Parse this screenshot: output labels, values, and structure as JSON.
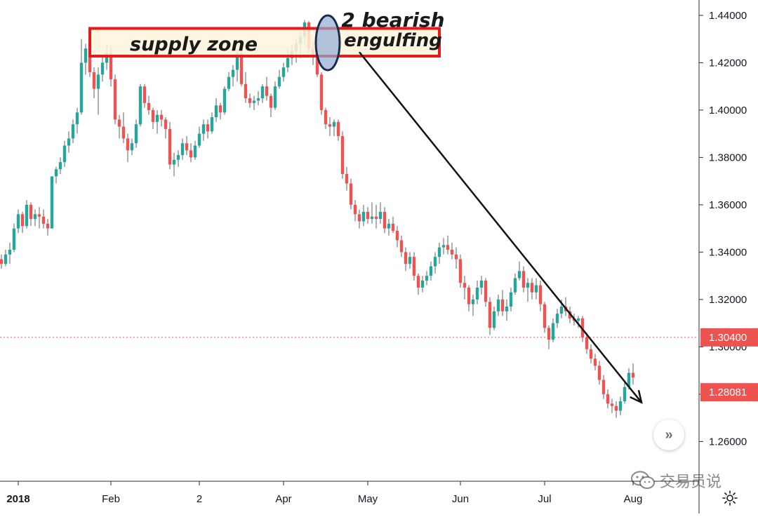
{
  "chart_data": {
    "type": "candlestick",
    "instrument_note": "",
    "y_axis": {
      "ticks": [
        1.26,
        1.28,
        1.3,
        1.32,
        1.34,
        1.36,
        1.38,
        1.4,
        1.42,
        1.44
      ],
      "tick_labels": [
        "1.26000",
        "1.28000",
        "1.30000",
        "1.32000",
        "1.34000",
        "1.36000",
        "1.38000",
        "1.40000",
        "1.42000",
        "1.44000"
      ],
      "range": [
        1.245,
        1.4465
      ],
      "position": "right"
    },
    "x_axis": {
      "tick_labels": [
        "2018",
        "Feb",
        "2",
        "Apr",
        "May",
        "Jun",
        "Jul",
        "Aug"
      ],
      "bar_index_of_ticks": [
        4,
        26,
        47,
        67,
        87,
        109,
        129,
        150
      ],
      "range_bars": [
        0,
        164
      ]
    },
    "grid": false,
    "price_levels": [
      {
        "label": "1.30400",
        "value": 1.304,
        "color": "#ef5350",
        "line": "dotted"
      },
      {
        "label": "1.28081",
        "value": 1.28081,
        "color": "#ef5350",
        "line": "none"
      }
    ],
    "annotations": {
      "supply_zone": {
        "text": "supply zone",
        "price_top": 1.4345,
        "price_bottom": 1.4228,
        "from_bar": 21,
        "to_bar": 104
      },
      "engulfing": {
        "text_line1": "2 bearish",
        "text_line2": "engulfing",
        "ellipse_bars": [
          76,
          79
        ]
      },
      "arrow": {
        "from_bar": 85,
        "from_price": 1.4245,
        "to_bar": 152,
        "to_price": 1.2765
      }
    },
    "colors": {
      "up": "#26a69a",
      "down": "#ef5350",
      "wick": "#5d6068",
      "zone_fill": "#fff5dc",
      "zone_border": "#e51b1b",
      "ellipse_fill": "#90acd4",
      "ellipse_border": "#1c2a4a"
    },
    "candles": [
      [
        1.337,
        1.339,
        1.333,
        1.335
      ],
      [
        1.335,
        1.341,
        1.334,
        1.339
      ],
      [
        1.339,
        1.344,
        1.335,
        1.341
      ],
      [
        1.341,
        1.352,
        1.34,
        1.35
      ],
      [
        1.35,
        1.358,
        1.348,
        1.356
      ],
      [
        1.356,
        1.357,
        1.348,
        1.351
      ],
      [
        1.351,
        1.362,
        1.35,
        1.36
      ],
      [
        1.36,
        1.361,
        1.351,
        1.354
      ],
      [
        1.354,
        1.358,
        1.351,
        1.356
      ],
      [
        1.356,
        1.359,
        1.35,
        1.355
      ],
      [
        1.355,
        1.358,
        1.35,
        1.352
      ],
      [
        1.352,
        1.354,
        1.347,
        1.35
      ],
      [
        1.35,
        1.372,
        1.35,
        1.372
      ],
      [
        1.372,
        1.376,
        1.369,
        1.375
      ],
      [
        1.375,
        1.38,
        1.373,
        1.378
      ],
      [
        1.378,
        1.387,
        1.376,
        1.385
      ],
      [
        1.385,
        1.391,
        1.382,
        1.388
      ],
      [
        1.388,
        1.396,
        1.386,
        1.394
      ],
      [
        1.394,
        1.401,
        1.39,
        1.399
      ],
      [
        1.399,
        1.43,
        1.398,
        1.42
      ],
      [
        1.42,
        1.428,
        1.415,
        1.426
      ],
      [
        1.426,
        1.429,
        1.414,
        1.416
      ],
      [
        1.416,
        1.418,
        1.405,
        1.409
      ],
      [
        1.409,
        1.418,
        1.398,
        1.415
      ],
      [
        1.415,
        1.423,
        1.412,
        1.42
      ],
      [
        1.42,
        1.428,
        1.417,
        1.424
      ],
      [
        1.424,
        1.427,
        1.41,
        1.413
      ],
      [
        1.413,
        1.415,
        1.394,
        1.396
      ],
      [
        1.396,
        1.398,
        1.388,
        1.393
      ],
      [
        1.393,
        1.399,
        1.386,
        1.388
      ],
      [
        1.388,
        1.39,
        1.378,
        1.383
      ],
      [
        1.383,
        1.388,
        1.381,
        1.386
      ],
      [
        1.386,
        1.396,
        1.384,
        1.394
      ],
      [
        1.394,
        1.411,
        1.393,
        1.41
      ],
      [
        1.41,
        1.411,
        1.401,
        1.403
      ],
      [
        1.403,
        1.406,
        1.398,
        1.4
      ],
      [
        1.4,
        1.401,
        1.392,
        1.395
      ],
      [
        1.395,
        1.4,
        1.39,
        1.398
      ],
      [
        1.398,
        1.4,
        1.393,
        1.396
      ],
      [
        1.396,
        1.397,
        1.388,
        1.392
      ],
      [
        1.392,
        1.395,
        1.375,
        1.377
      ],
      [
        1.377,
        1.382,
        1.372,
        1.379
      ],
      [
        1.379,
        1.383,
        1.376,
        1.381
      ],
      [
        1.381,
        1.388,
        1.379,
        1.386
      ],
      [
        1.386,
        1.389,
        1.381,
        1.383
      ],
      [
        1.383,
        1.386,
        1.378,
        1.38
      ],
      [
        1.38,
        1.387,
        1.379,
        1.385
      ],
      [
        1.385,
        1.393,
        1.384,
        1.39
      ],
      [
        1.39,
        1.396,
        1.387,
        1.394
      ],
      [
        1.394,
        1.396,
        1.388,
        1.391
      ],
      [
        1.391,
        1.399,
        1.39,
        1.397
      ],
      [
        1.397,
        1.405,
        1.395,
        1.402
      ],
      [
        1.402,
        1.403,
        1.396,
        1.399
      ],
      [
        1.399,
        1.41,
        1.398,
        1.409
      ],
      [
        1.409,
        1.416,
        1.408,
        1.414
      ],
      [
        1.414,
        1.419,
        1.41,
        1.417
      ],
      [
        1.417,
        1.426,
        1.412,
        1.424
      ],
      [
        1.424,
        1.427,
        1.41,
        1.411
      ],
      [
        1.411,
        1.416,
        1.403,
        1.405
      ],
      [
        1.405,
        1.407,
        1.401,
        1.403
      ],
      [
        1.403,
        1.406,
        1.4,
        1.404
      ],
      [
        1.404,
        1.408,
        1.402,
        1.405
      ],
      [
        1.405,
        1.411,
        1.403,
        1.41
      ],
      [
        1.41,
        1.414,
        1.404,
        1.406
      ],
      [
        1.406,
        1.407,
        1.397,
        1.401
      ],
      [
        1.401,
        1.412,
        1.4,
        1.41
      ],
      [
        1.41,
        1.417,
        1.409,
        1.414
      ],
      [
        1.414,
        1.42,
        1.412,
        1.418
      ],
      [
        1.418,
        1.426,
        1.416,
        1.422
      ],
      [
        1.422,
        1.428,
        1.419,
        1.425
      ],
      [
        1.425,
        1.43,
        1.42,
        1.428
      ],
      [
        1.428,
        1.433,
        1.422,
        1.431
      ],
      [
        1.431,
        1.438,
        1.428,
        1.437
      ],
      [
        1.437,
        1.4376,
        1.424,
        1.426
      ],
      [
        1.426,
        1.429,
        1.419,
        1.423
      ],
      [
        1.423,
        1.425,
        1.414,
        1.415
      ],
      [
        1.415,
        1.416,
        1.398,
        1.4
      ],
      [
        1.4,
        1.401,
        1.392,
        1.394
      ],
      [
        1.394,
        1.397,
        1.389,
        1.393
      ],
      [
        1.393,
        1.396,
        1.389,
        1.395
      ],
      [
        1.395,
        1.396,
        1.387,
        1.389
      ],
      [
        1.389,
        1.391,
        1.371,
        1.373
      ],
      [
        1.373,
        1.376,
        1.366,
        1.369
      ],
      [
        1.369,
        1.371,
        1.358,
        1.36
      ],
      [
        1.36,
        1.362,
        1.353,
        1.356
      ],
      [
        1.356,
        1.358,
        1.35,
        1.353
      ],
      [
        1.353,
        1.36,
        1.351,
        1.357
      ],
      [
        1.357,
        1.359,
        1.352,
        1.354
      ],
      [
        1.354,
        1.361,
        1.352,
        1.355
      ],
      [
        1.355,
        1.36,
        1.35,
        1.354
      ],
      [
        1.354,
        1.361,
        1.352,
        1.357
      ],
      [
        1.357,
        1.359,
        1.348,
        1.35
      ],
      [
        1.35,
        1.354,
        1.347,
        1.352
      ],
      [
        1.352,
        1.355,
        1.348,
        1.349
      ],
      [
        1.349,
        1.351,
        1.342,
        1.345
      ],
      [
        1.345,
        1.347,
        1.338,
        1.34
      ],
      [
        1.34,
        1.342,
        1.332,
        1.335
      ],
      [
        1.335,
        1.34,
        1.333,
        1.338
      ],
      [
        1.338,
        1.34,
        1.328,
        1.33
      ],
      [
        1.33,
        1.331,
        1.322,
        1.325
      ],
      [
        1.325,
        1.33,
        1.323,
        1.328
      ],
      [
        1.328,
        1.332,
        1.326,
        1.33
      ],
      [
        1.33,
        1.336,
        1.328,
        1.334
      ],
      [
        1.334,
        1.34,
        1.331,
        1.338
      ],
      [
        1.338,
        1.344,
        1.335,
        1.342
      ],
      [
        1.342,
        1.346,
        1.339,
        1.343
      ],
      [
        1.343,
        1.347,
        1.339,
        1.341
      ],
      [
        1.341,
        1.344,
        1.337,
        1.339
      ],
      [
        1.339,
        1.342,
        1.333,
        1.337
      ],
      [
        1.337,
        1.339,
        1.325,
        1.327
      ],
      [
        1.327,
        1.33,
        1.32,
        1.325
      ],
      [
        1.325,
        1.326,
        1.315,
        1.318
      ],
      [
        1.318,
        1.322,
        1.313,
        1.32
      ],
      [
        1.32,
        1.328,
        1.318,
        1.325
      ],
      [
        1.325,
        1.33,
        1.322,
        1.328
      ],
      [
        1.328,
        1.329,
        1.317,
        1.319
      ],
      [
        1.319,
        1.321,
        1.305,
        1.308
      ],
      [
        1.308,
        1.317,
        1.307,
        1.315
      ],
      [
        1.315,
        1.322,
        1.313,
        1.32
      ],
      [
        1.32,
        1.324,
        1.313,
        1.315
      ],
      [
        1.315,
        1.32,
        1.311,
        1.317
      ],
      [
        1.317,
        1.325,
        1.315,
        1.323
      ],
      [
        1.323,
        1.331,
        1.322,
        1.329
      ],
      [
        1.329,
        1.336,
        1.328,
        1.332
      ],
      [
        1.332,
        1.334,
        1.323,
        1.325
      ],
      [
        1.325,
        1.329,
        1.319,
        1.327
      ],
      [
        1.327,
        1.329,
        1.32,
        1.323
      ],
      [
        1.323,
        1.329,
        1.32,
        1.326
      ],
      [
        1.326,
        1.328,
        1.315,
        1.318
      ],
      [
        1.318,
        1.319,
        1.306,
        1.308
      ],
      [
        1.308,
        1.309,
        1.299,
        1.303
      ],
      [
        1.303,
        1.312,
        1.302,
        1.31
      ],
      [
        1.31,
        1.316,
        1.308,
        1.314
      ],
      [
        1.314,
        1.32,
        1.312,
        1.317
      ],
      [
        1.317,
        1.321,
        1.313,
        1.315
      ],
      [
        1.315,
        1.317,
        1.31,
        1.312
      ],
      [
        1.312,
        1.314,
        1.309,
        1.311
      ],
      [
        1.311,
        1.313,
        1.308,
        1.312
      ],
      [
        1.312,
        1.313,
        1.302,
        1.304
      ],
      [
        1.304,
        1.306,
        1.297,
        1.299
      ],
      [
        1.299,
        1.301,
        1.293,
        1.295
      ],
      [
        1.295,
        1.297,
        1.29,
        1.292
      ],
      [
        1.292,
        1.294,
        1.284,
        1.286
      ],
      [
        1.286,
        1.288,
        1.278,
        1.28
      ],
      [
        1.28,
        1.282,
        1.274,
        1.276
      ],
      [
        1.276,
        1.278,
        1.272,
        1.275
      ],
      [
        1.275,
        1.277,
        1.27,
        1.273
      ],
      [
        1.273,
        1.279,
        1.271,
        1.277
      ],
      [
        1.277,
        1.285,
        1.276,
        1.283
      ],
      [
        1.283,
        1.291,
        1.282,
        1.289
      ],
      [
        1.289,
        1.293,
        1.284,
        1.287
      ]
    ]
  },
  "watermark": {
    "text": "交易员说",
    "icon": "wechat-icon"
  },
  "controls": {
    "scroll_icon": "double-chevron-right-icon",
    "settings_icon": "gear-icon"
  }
}
